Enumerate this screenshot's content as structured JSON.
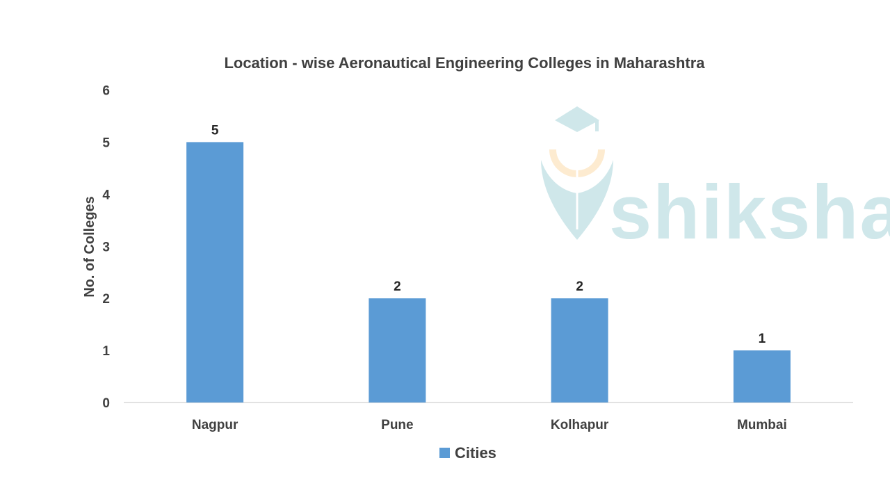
{
  "chart_data": {
    "type": "bar",
    "title": "Location - wise Aeronautical Engineering Colleges in Maharashtra",
    "xlabel": "",
    "ylabel": "No. of Colleges",
    "categories": [
      "Nagpur",
      "Pune",
      "Kolhapur",
      "Mumbai"
    ],
    "series": [
      {
        "name": "Cities",
        "values": [
          5,
          2,
          2,
          1
        ]
      }
    ],
    "ylim": [
      0,
      6
    ],
    "yticks": [
      0,
      1,
      2,
      3,
      4,
      5,
      6
    ],
    "grid": false,
    "legend": "bottom",
    "data_labels": true,
    "colors": {
      "bar": "#5b9bd5",
      "axis": "#d9d9d9",
      "text": "#404040"
    }
  },
  "watermark": {
    "text": "shiksha",
    "icon": "graduation-cap-pen-logo",
    "color": "#cfe7ea"
  }
}
